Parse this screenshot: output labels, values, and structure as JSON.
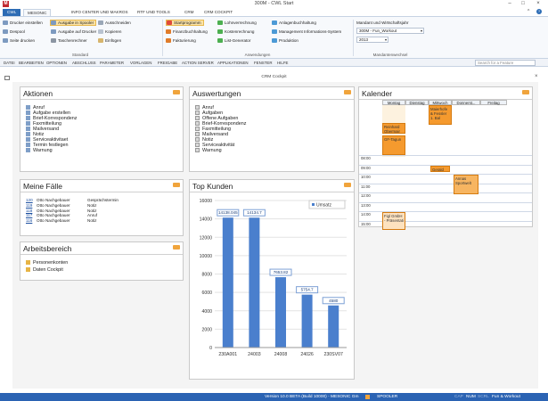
{
  "window": {
    "title": "300M - CWL Start",
    "controls": {
      "minimize": "–",
      "maximize": "□",
      "close": "×"
    }
  },
  "tabs": [
    "CWL",
    "MESONIC",
    "INFO CENTER UND MAKROS",
    "RTF UND TOOLS",
    "CRM",
    "CRM COCKPIT"
  ],
  "ribbon": {
    "standard": {
      "label": "Standard",
      "items": [
        "Drucker einstellen",
        "Ausgabe in Spooler",
        "Ausschneiden",
        "Despool",
        "Ausgabe auf Drucker",
        "Kopieren",
        "Seite drucken",
        "Taschenrechner",
        "Einfügen"
      ]
    },
    "anwendungen": {
      "label": "Anwendungen",
      "items": [
        "Startprogramm",
        "Lohnverrechnung",
        "Anlagenbuchhaltung",
        "Finanzbuchhaltung",
        "Kostenrechnung",
        "Management Informations-System",
        "Fakturierung",
        "List-Generator",
        "Produktion"
      ]
    },
    "mandanten": {
      "label": "Mandantenwechsel",
      "name": "Mandant und Wirtschaftsjahr",
      "mandant": "300M - Fun_Workout",
      "year": "2013"
    }
  },
  "menu": [
    "DATEI",
    "BEARBEITEN",
    "OPTIONEN",
    "ABSCHLUSS",
    "PARAMETER",
    "VORLAGEN",
    "FREIGABE",
    "ACTION SERVER",
    "APPLIKATIONEN",
    "FENSTER",
    "HILFE"
  ],
  "search": {
    "placeholder": "Search for a Feature"
  },
  "cockpit": {
    "title": "CRM Cockpit"
  },
  "aktionen": {
    "title": "Aktionen",
    "items": [
      "Anruf",
      "Aufgabe erstellen",
      "Brief-Korrespondenz",
      "Faxmitteilung",
      "Mailversand",
      "Notiz",
      "Serviceaktivitaet",
      "Termin festlegen",
      "Warnung"
    ]
  },
  "auswertungen": {
    "title": "Auswertungen",
    "items": [
      "Anruf",
      "Aufgaben",
      "Offene Aufgaben",
      "Brief-Korrespondenz",
      "Faxmitteilung",
      "Mailversand",
      "Notiz",
      "Serviceaktivität",
      "Warnung"
    ]
  },
  "faelle": {
    "title": "Meine Fälle",
    "rows": [
      {
        "id": "120",
        "name": "Otto Nachgebauer",
        "type": "Gesprächstermin"
      },
      {
        "id": "119",
        "name": "Otto Nachgebauer",
        "type": "Notiz"
      },
      {
        "id": "118",
        "name": "Otto Nachgebauer",
        "type": "Notiz"
      },
      {
        "id": "117",
        "name": "Otto Nachgebauer",
        "type": "Anruf"
      },
      {
        "id": "116",
        "name": "Otto Nachgebauer",
        "type": "Notiz"
      }
    ]
  },
  "arbeitsbereich": {
    "title": "Arbeitsbereich",
    "items": [
      "Personenkonten",
      "Daten Cockpit"
    ]
  },
  "chart_data": {
    "type": "bar",
    "title": "Top Kunden",
    "categories": [
      "230A001",
      "24003",
      "24008",
      "24026",
      "230SV07"
    ],
    "series": [
      {
        "name": "Umsatz",
        "values": [
          14138.045,
          14134.7,
          7653.82,
          5754.7,
          4580
        ],
        "labels": [
          "14138.045",
          "14134.7",
          "7653.82",
          "5754.7",
          "4580"
        ]
      }
    ],
    "yticks": [
      0,
      2000,
      4000,
      6000,
      8000,
      10000,
      12000,
      14000,
      16000
    ],
    "ylim": [
      0,
      16000
    ],
    "grid": true,
    "legend": "top-right",
    "color": "#4a7fcd"
  },
  "kalender": {
    "title": "Kalender",
    "days": [
      "Montag",
      "Dienstag",
      "Mittwoch",
      "Donnerst...",
      "Freitag"
    ],
    "times": [
      "08:00",
      "09:00",
      "10:00",
      "11:00",
      "12:00",
      "13:00",
      "14:00",
      "15:00"
    ],
    "events": [
      {
        "text": "Maierhofe & Fessler 1. Bal",
        "day": 2
      },
      {
        "text": "Reinhard Obermair",
        "day": 0
      },
      {
        "text": "GF-Tagun",
        "day": 0
      },
      {
        "text": "Gerald",
        "day": 2
      },
      {
        "text": "Annas Sportwelt",
        "day": 3
      },
      {
        "text": "Figl GmbH - Präsentati",
        "day": 0
      }
    ]
  },
  "status": {
    "version": "Version 10.0 BETA (Build 10000) - MESONIC Gm",
    "spooler": "SPOOLER",
    "caps": "CAP",
    "num": "NUM",
    "scrl": "SCRL",
    "mandant": "Fun & Workout"
  },
  "colors": {
    "brand": "#2d6cb5",
    "accent": "#f59a2e",
    "bar": "#4a7fcd"
  }
}
